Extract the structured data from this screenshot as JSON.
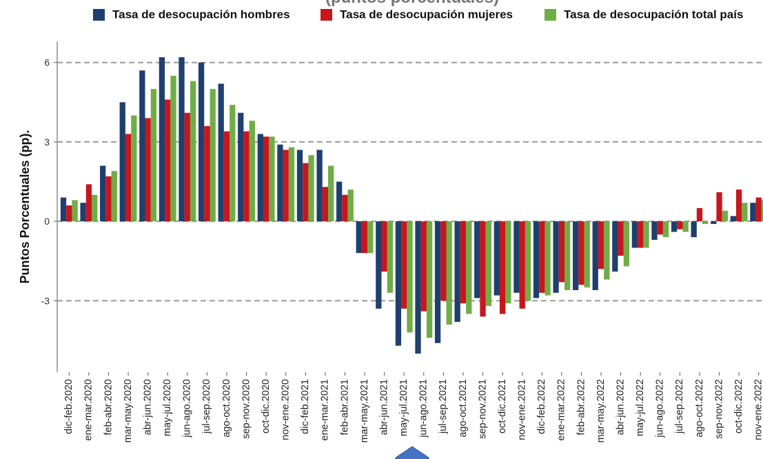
{
  "chart_data": {
    "type": "bar",
    "title": "(puntos porcentuales)",
    "ylabel": "Puntos Porcentuales (pp).",
    "categories": [
      "dic-feb.2020",
      "ene-mar.2020",
      "feb-abr.2020",
      "mar-may.2020",
      "abr-jun.2020",
      "may-jul.2020",
      "jun-ago.2020",
      "jul-sep.2020",
      "ago-oct.2020",
      "sep-nov.2020",
      "oct-dic.2020",
      "nov-ene.2020",
      "dic-feb.2021",
      "ene-mar.2021",
      "feb-abr.2021",
      "mar-may.2021",
      "abr-jun.2021",
      "may-jul.2021",
      "jun-ago.2021",
      "jul-sep.2021",
      "ago-oct.2021",
      "sep-nov.2021",
      "oct-dic.2021",
      "nov-ene.2021",
      "dic-feb.2022",
      "ene-mar.2022",
      "feb-abr.2022",
      "mar-may.2022",
      "abr-jun.2022",
      "may-jul.2022",
      "jun-ago.2022",
      "jul-sep.2022",
      "ago-oct.2022",
      "sep-nov.2022",
      "oct-dic.2022",
      "nov-ene.2022"
    ],
    "series": [
      {
        "name": "Tasa de desocupación hombres",
        "color": "#1f3f6e",
        "values": [
          0.9,
          0.7,
          2.1,
          4.5,
          5.7,
          6.2,
          6.2,
          6.0,
          5.2,
          4.1,
          3.3,
          2.9,
          2.7,
          2.7,
          1.5,
          -1.2,
          -3.3,
          -4.7,
          -5.0,
          -4.6,
          -3.8,
          -2.9,
          -2.8,
          -2.7,
          -2.9,
          -2.7,
          -2.6,
          -2.6,
          -1.9,
          -1.0,
          -0.7,
          -0.4,
          -0.6,
          -0.1,
          0.2,
          0.7
        ]
      },
      {
        "name": "Tasa de desocupación mujeres",
        "color": "#c8161d",
        "values": [
          0.6,
          1.4,
          1.7,
          3.3,
          3.9,
          4.6,
          4.1,
          3.6,
          3.4,
          3.4,
          3.2,
          2.7,
          2.2,
          1.3,
          1.0,
          -1.2,
          -1.9,
          -3.3,
          -3.4,
          -3.0,
          -3.1,
          -3.6,
          -3.5,
          -3.3,
          -2.7,
          -2.3,
          -2.4,
          -1.8,
          -1.3,
          -1.0,
          -0.5,
          -0.3,
          0.5,
          1.1,
          1.2,
          0.9
        ]
      },
      {
        "name": "Tasa de desocupación total país",
        "color": "#70ad47",
        "values": [
          0.8,
          1.0,
          1.9,
          4.0,
          5.0,
          5.5,
          5.3,
          5.0,
          4.4,
          3.8,
          3.2,
          2.8,
          2.5,
          2.1,
          1.2,
          -1.2,
          -2.7,
          -4.2,
          -4.4,
          -3.9,
          -3.5,
          -3.2,
          -3.1,
          -3.0,
          -2.8,
          -2.6,
          -2.5,
          -2.2,
          -1.7,
          -1.0,
          -0.6,
          -0.4,
          -0.1,
          0.4,
          0.7,
          0.8
        ]
      }
    ],
    "ylim": [
      -5.7,
      6.8
    ],
    "yticks": [
      -3,
      0,
      3,
      6
    ],
    "grid": true
  }
}
